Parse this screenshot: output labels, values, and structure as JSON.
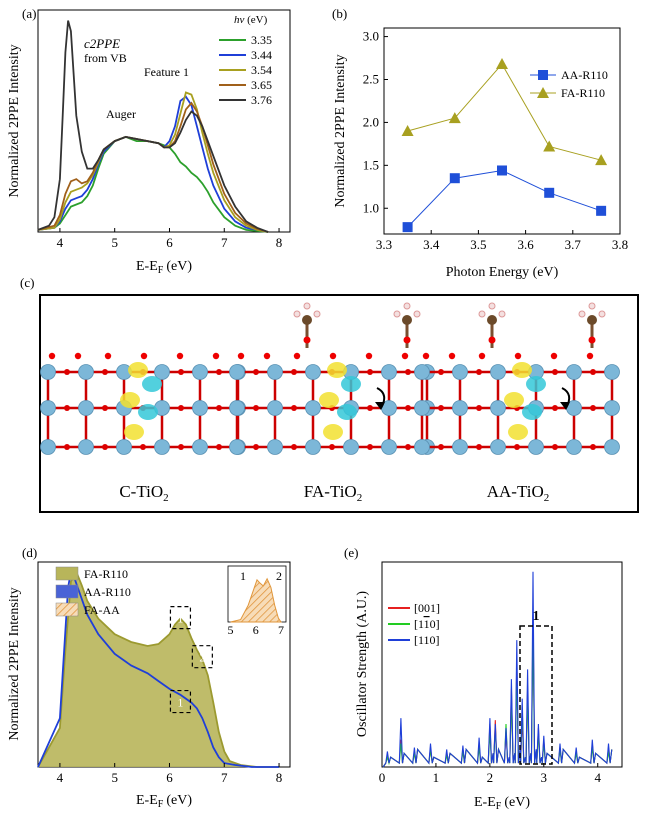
{
  "panels": {
    "a": {
      "label": "(a)",
      "annot_c2ppe": "c2PPE",
      "annot_from_vb": "from VB",
      "annot_feature": "Feature 1",
      "annot_auger": "Auger",
      "legend_title_sym": "hv",
      "legend_title_unit": " (eV)"
    },
    "b": {
      "label": "(b)"
    },
    "c": {
      "label": "(c)",
      "structures": [
        {
          "name": "C-TiO",
          "sub": "2"
        },
        {
          "name": "FA-TiO",
          "sub": "2"
        },
        {
          "name": "AA-TiO",
          "sub": "2"
        }
      ]
    },
    "d": {
      "label": "(d)",
      "inset_peak_1": "1",
      "inset_peak_2": "2",
      "inset_ticks": [
        "5",
        "6",
        "7"
      ]
    },
    "e": {
      "label": "(e)",
      "box_label": "1"
    }
  },
  "chart_data": [
    {
      "id": "a",
      "type": "line",
      "xlabel": "E-E",
      "xlabel_sub": "F",
      "xlabel_unit": "(eV)",
      "ylabel": "Normalized 2PPE Intensity",
      "xlim": [
        3.6,
        8.2
      ],
      "ylim": [
        0,
        1.05
      ],
      "xticks": [
        4,
        5,
        6,
        7,
        8
      ],
      "series": [
        {
          "name": "3.35",
          "color": "#2ca02c",
          "x": [
            3.6,
            3.9,
            4.0,
            4.1,
            4.2,
            4.3,
            4.4,
            4.5,
            4.6,
            4.7,
            4.8,
            5.0,
            5.2,
            5.4,
            5.6,
            5.8,
            6.0,
            6.1,
            6.2,
            6.3,
            6.4,
            6.5,
            6.6,
            6.7,
            6.8,
            7.0,
            7.2,
            7.4,
            7.6,
            7.8
          ],
          "y": [
            0.01,
            0.02,
            0.04,
            0.08,
            0.12,
            0.13,
            0.14,
            0.17,
            0.22,
            0.3,
            0.37,
            0.43,
            0.45,
            0.43,
            0.43,
            0.42,
            0.4,
            0.37,
            0.33,
            0.31,
            0.28,
            0.26,
            0.23,
            0.19,
            0.14,
            0.07,
            0.03,
            0.01,
            0.005,
            0.0
          ]
        },
        {
          "name": "3.44",
          "color": "#1f3fd8",
          "x": [
            3.6,
            3.9,
            4.0,
            4.1,
            4.2,
            4.3,
            4.4,
            4.5,
            4.6,
            4.7,
            4.8,
            5.0,
            5.2,
            5.4,
            5.6,
            5.8,
            5.9,
            6.0,
            6.1,
            6.2,
            6.3,
            6.4,
            6.5,
            6.6,
            6.7,
            6.8,
            7.0,
            7.2,
            7.4,
            7.6,
            7.8
          ],
          "y": [
            0.01,
            0.02,
            0.05,
            0.11,
            0.15,
            0.16,
            0.17,
            0.2,
            0.25,
            0.32,
            0.38,
            0.43,
            0.45,
            0.44,
            0.43,
            0.42,
            0.4,
            0.43,
            0.5,
            0.62,
            0.64,
            0.6,
            0.5,
            0.4,
            0.3,
            0.22,
            0.11,
            0.05,
            0.02,
            0.01,
            0.0
          ]
        },
        {
          "name": "3.54",
          "color": "#a8a020",
          "x": [
            3.6,
            3.9,
            4.0,
            4.1,
            4.2,
            4.3,
            4.4,
            4.5,
            4.6,
            4.7,
            4.8,
            5.0,
            5.2,
            5.4,
            5.6,
            5.8,
            5.9,
            6.0,
            6.1,
            6.2,
            6.3,
            6.4,
            6.5,
            6.6,
            6.7,
            6.8,
            7.0,
            7.2,
            7.4,
            7.6,
            7.8
          ],
          "y": [
            0.01,
            0.02,
            0.06,
            0.14,
            0.19,
            0.2,
            0.21,
            0.23,
            0.27,
            0.33,
            0.39,
            0.43,
            0.45,
            0.44,
            0.43,
            0.42,
            0.4,
            0.41,
            0.46,
            0.56,
            0.66,
            0.65,
            0.58,
            0.47,
            0.37,
            0.28,
            0.15,
            0.07,
            0.03,
            0.01,
            0.0
          ]
        },
        {
          "name": "3.65",
          "color": "#a0601a",
          "x": [
            3.6,
            3.9,
            4.0,
            4.1,
            4.2,
            4.3,
            4.4,
            4.5,
            4.6,
            4.7,
            4.8,
            5.0,
            5.2,
            5.4,
            5.6,
            5.8,
            5.9,
            6.0,
            6.1,
            6.2,
            6.3,
            6.4,
            6.5,
            6.6,
            6.7,
            6.8,
            7.0,
            7.2,
            7.4,
            7.6,
            7.8
          ],
          "y": [
            0.01,
            0.03,
            0.08,
            0.18,
            0.24,
            0.25,
            0.23,
            0.24,
            0.28,
            0.34,
            0.39,
            0.43,
            0.45,
            0.44,
            0.43,
            0.42,
            0.4,
            0.4,
            0.43,
            0.5,
            0.58,
            0.61,
            0.57,
            0.5,
            0.41,
            0.32,
            0.18,
            0.09,
            0.04,
            0.015,
            0.0
          ]
        },
        {
          "name": "3.76",
          "color": "#333333",
          "x": [
            3.6,
            3.8,
            3.9,
            4.0,
            4.05,
            4.1,
            4.15,
            4.2,
            4.25,
            4.3,
            4.4,
            4.5,
            4.6,
            4.7,
            4.8,
            5.0,
            5.2,
            5.4,
            5.6,
            5.8,
            5.9,
            6.0,
            6.1,
            6.2,
            6.3,
            6.4,
            6.5,
            6.6,
            6.7,
            6.8,
            7.0,
            7.2,
            7.4,
            7.6,
            7.8
          ],
          "y": [
            0.01,
            0.03,
            0.07,
            0.25,
            0.55,
            0.85,
            1.0,
            0.95,
            0.75,
            0.55,
            0.38,
            0.3,
            0.3,
            0.34,
            0.39,
            0.43,
            0.45,
            0.44,
            0.43,
            0.42,
            0.4,
            0.4,
            0.42,
            0.47,
            0.53,
            0.57,
            0.55,
            0.5,
            0.43,
            0.36,
            0.22,
            0.12,
            0.05,
            0.02,
            0.0
          ]
        }
      ]
    },
    {
      "id": "b",
      "type": "line",
      "xlabel": "Photon Energy (eV)",
      "ylabel": "Normalized 2PPE Intensity",
      "xlim": [
        3.3,
        3.8
      ],
      "ylim": [
        0.7,
        3.1
      ],
      "xticks": [
        3.3,
        3.4,
        3.5,
        3.6,
        3.7,
        3.8
      ],
      "yticks": [
        1.0,
        1.5,
        2.0,
        2.5,
        3.0
      ],
      "legend": "upper-right",
      "series": [
        {
          "name": "AA-R110",
          "color": "#1f4fd8",
          "marker": "square",
          "x": [
            3.35,
            3.45,
            3.55,
            3.65,
            3.76
          ],
          "y": [
            0.78,
            1.35,
            1.44,
            1.18,
            0.97
          ]
        },
        {
          "name": "FA-R110",
          "color": "#a8a020",
          "marker": "triangle",
          "x": [
            3.35,
            3.45,
            3.55,
            3.65,
            3.76
          ],
          "y": [
            1.9,
            2.05,
            2.68,
            1.72,
            1.56
          ]
        }
      ]
    },
    {
      "id": "d",
      "type": "area",
      "xlabel": "E-E",
      "xlabel_sub": "F",
      "xlabel_unit": "(eV)",
      "ylabel": "Normalized 2PPE Intensity",
      "xlim": [
        3.6,
        8.2
      ],
      "ylim": [
        0,
        1.05
      ],
      "xticks": [
        4,
        5,
        6,
        7,
        8
      ],
      "legend_labels": [
        "FA-R110",
        "AA-R110",
        "FA-AA"
      ],
      "box_labels": [
        "1",
        "2",
        "1"
      ],
      "series": [
        {
          "name": "FA-R110",
          "color": "#9c9a30",
          "fill": "#b8b55a",
          "x": [
            3.6,
            4.0,
            4.1,
            4.2,
            4.3,
            4.4,
            4.5,
            4.7,
            5.0,
            5.3,
            5.6,
            5.8,
            6.0,
            6.1,
            6.2,
            6.3,
            6.4,
            6.5,
            6.6,
            6.7,
            6.8,
            6.9,
            7.0,
            7.1,
            7.3,
            7.6,
            8.0
          ],
          "y": [
            0.0,
            0.2,
            0.6,
            0.95,
            1.0,
            0.93,
            0.85,
            0.76,
            0.68,
            0.64,
            0.62,
            0.63,
            0.68,
            0.73,
            0.76,
            0.73,
            0.66,
            0.6,
            0.55,
            0.47,
            0.33,
            0.18,
            0.08,
            0.03,
            0.01,
            0.0,
            0.0
          ]
        },
        {
          "name": "AA-R110",
          "color": "#1f3fd8",
          "fill": "#4a63d6",
          "x": [
            3.6,
            4.0,
            4.1,
            4.15,
            4.2,
            4.25,
            4.3,
            4.4,
            4.5,
            4.7,
            5.0,
            5.3,
            5.6,
            5.8,
            6.0,
            6.2,
            6.4,
            6.5,
            6.6,
            6.7,
            6.8,
            6.9,
            7.0,
            7.2,
            7.5,
            8.0
          ],
          "y": [
            0.0,
            0.25,
            0.7,
            0.92,
            1.0,
            0.98,
            0.94,
            0.86,
            0.78,
            0.68,
            0.58,
            0.52,
            0.48,
            0.44,
            0.4,
            0.37,
            0.33,
            0.3,
            0.25,
            0.18,
            0.1,
            0.05,
            0.02,
            0.01,
            0.0,
            0.0
          ]
        }
      ],
      "inset": {
        "name": "FA-AA",
        "color": "#e0963a",
        "x": [
          5.0,
          5.4,
          5.7,
          5.9,
          6.05,
          6.15,
          6.3,
          6.45,
          6.6,
          6.75,
          6.9,
          7.0
        ],
        "y": [
          0.0,
          0.05,
          0.35,
          0.65,
          0.88,
          0.82,
          0.75,
          0.9,
          0.72,
          0.35,
          0.08,
          0.0
        ]
      }
    },
    {
      "id": "e",
      "type": "line",
      "xlabel": "E-E",
      "xlabel_sub": "F",
      "xlabel_unit": "(eV)",
      "ylabel": "Oscillator Strength (A.U.)",
      "xlim": [
        0,
        4.45
      ],
      "ylim": [
        0,
        1.05
      ],
      "xticks": [
        0,
        1,
        2,
        3,
        4
      ],
      "legend_labels": [
        "[001]",
        "[1",
        "1",
        "0]",
        "[110]"
      ],
      "series": [
        {
          "name": "[001]",
          "color": "#e62020",
          "x": [
            0.1,
            0.35,
            0.6,
            0.9,
            1.2,
            1.5,
            1.8,
            2.0,
            2.1,
            2.3,
            2.4,
            2.5,
            2.6,
            2.7,
            2.8,
            2.9,
            3.0,
            3.3,
            3.6,
            3.9,
            4.2
          ],
          "y": [
            0.06,
            0.14,
            0.08,
            0.1,
            0.07,
            0.09,
            0.12,
            0.22,
            0.24,
            0.18,
            0.4,
            0.55,
            0.25,
            0.4,
            0.78,
            0.2,
            0.14,
            0.1,
            0.08,
            0.12,
            0.1
          ]
        },
        {
          "name": "[1-10]",
          "color": "#22cc22",
          "x": [
            0.1,
            0.35,
            0.6,
            0.9,
            1.2,
            1.5,
            1.8,
            2.0,
            2.1,
            2.3,
            2.4,
            2.5,
            2.6,
            2.7,
            2.8,
            2.9,
            3.0,
            3.3,
            3.6,
            3.9,
            4.2
          ],
          "y": [
            0.05,
            0.12,
            0.07,
            0.09,
            0.06,
            0.08,
            0.1,
            0.18,
            0.2,
            0.22,
            0.36,
            0.48,
            0.3,
            0.38,
            0.7,
            0.18,
            0.12,
            0.09,
            0.07,
            0.1,
            0.08
          ]
        },
        {
          "name": "[110]",
          "color": "#1f3fd8",
          "x": [
            0.1,
            0.35,
            0.6,
            0.9,
            1.2,
            1.5,
            1.8,
            2.0,
            2.1,
            2.3,
            2.4,
            2.5,
            2.6,
            2.7,
            2.8,
            2.9,
            3.0,
            3.3,
            3.6,
            3.9,
            4.2
          ],
          "y": [
            0.08,
            0.25,
            0.1,
            0.12,
            0.09,
            0.11,
            0.15,
            0.25,
            0.22,
            0.2,
            0.45,
            0.65,
            0.35,
            0.5,
            1.0,
            0.22,
            0.16,
            0.12,
            0.1,
            0.14,
            0.12
          ]
        }
      ]
    }
  ]
}
